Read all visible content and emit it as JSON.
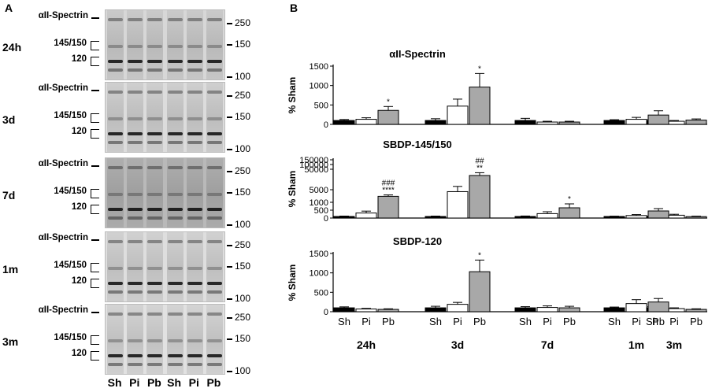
{
  "panels": {
    "a": "A",
    "b": "B"
  },
  "blots": {
    "band_labels": {
      "spectrin": "αII-Spectrin",
      "sbdp145": "145/150",
      "sbdp120": "120"
    },
    "mw_ticks": [
      "250",
      "150",
      "100"
    ],
    "rows": [
      {
        "time": "24h",
        "tone": "#d7d7d7"
      },
      {
        "time": "3d",
        "tone": "#dcdcdc"
      },
      {
        "time": "7d",
        "tone": "#b9b9b9"
      },
      {
        "time": "1m",
        "tone": "#dedede"
      },
      {
        "time": "3m",
        "tone": "#e1e1e1"
      }
    ],
    "lanes": [
      "Sh",
      "Pi",
      "Pb",
      "Sh",
      "Pi",
      "Pb"
    ]
  },
  "colors": {
    "Sh": "#000000",
    "Pi": "#ffffff",
    "Pb": "#a8a8a8"
  },
  "chart_data": [
    {
      "type": "bar",
      "title": "αII-Spectrin",
      "ylabel": "% Sham",
      "ylim": [
        0,
        1500
      ],
      "yticks": [
        "0",
        "500",
        "1000",
        "1500"
      ],
      "groups": [
        "24h",
        "3d",
        "7d",
        "1m",
        "3m"
      ],
      "series": [
        {
          "name": "Sh",
          "values": [
            100,
            100,
            100,
            100,
            100
          ],
          "errors": [
            25,
            45,
            55,
            20,
            25
          ]
        },
        {
          "name": "Pi",
          "values": [
            130,
            470,
            60,
            130,
            80
          ],
          "errors": [
            40,
            180,
            20,
            50,
            20
          ]
        },
        {
          "name": "Pb",
          "values": [
            360,
            960,
            60,
            240,
            110
          ],
          "errors": [
            100,
            350,
            20,
            110,
            30
          ]
        }
      ],
      "annotations": [
        {
          "group": 0,
          "series": 2,
          "text": "*"
        },
        {
          "group": 1,
          "series": 2,
          "text": "*"
        }
      ]
    },
    {
      "type": "bar",
      "title": "SBDP-145/150",
      "ylabel": "% Sham",
      "yscale": "broken",
      "yticks": [
        "0",
        "500",
        "1000",
        "5000",
        "50000",
        "100000",
        "150000"
      ],
      "groups": [
        "24h",
        "3d",
        "7d",
        "1m",
        "3m"
      ],
      "series": [
        {
          "name": "Sh",
          "values": [
            100,
            100,
            100,
            100,
            100
          ],
          "errors": [
            25,
            25,
            30,
            20,
            25
          ]
        },
        {
          "name": "Pi",
          "values": [
            320,
            4300,
            280,
            160,
            180
          ],
          "errors": [
            120,
            1500,
            120,
            60,
            60
          ]
        },
        {
          "name": "Pb",
          "values": [
            2600,
            65000,
            650,
            450,
            90
          ],
          "errors": [
            500,
            15000,
            250,
            150,
            30
          ]
        }
      ],
      "annotations": [
        {
          "group": 0,
          "series": 2,
          "text": "###"
        },
        {
          "group": 0,
          "series": 2,
          "text": "****"
        },
        {
          "group": 1,
          "series": 2,
          "text": "##"
        },
        {
          "group": 1,
          "series": 2,
          "text": "**"
        },
        {
          "group": 2,
          "series": 2,
          "text": "*"
        }
      ]
    },
    {
      "type": "bar",
      "title": "SBDP-120",
      "ylabel": "% Sham",
      "ylim": [
        0,
        1500
      ],
      "yticks": [
        "0",
        "500",
        "1000",
        "1500"
      ],
      "groups": [
        "24h",
        "3d",
        "7d",
        "1m",
        "3m"
      ],
      "series": [
        {
          "name": "Sh",
          "values": [
            100,
            100,
            100,
            100,
            100
          ],
          "errors": [
            25,
            40,
            30,
            20,
            30
          ]
        },
        {
          "name": "Pi",
          "values": [
            70,
            190,
            110,
            210,
            80
          ],
          "errors": [
            15,
            50,
            40,
            100,
            20
          ]
        },
        {
          "name": "Pb",
          "values": [
            60,
            1030,
            100,
            250,
            60
          ],
          "errors": [
            15,
            300,
            40,
            90,
            15
          ]
        }
      ],
      "annotations": [
        {
          "group": 1,
          "series": 2,
          "text": "*"
        }
      ]
    }
  ]
}
